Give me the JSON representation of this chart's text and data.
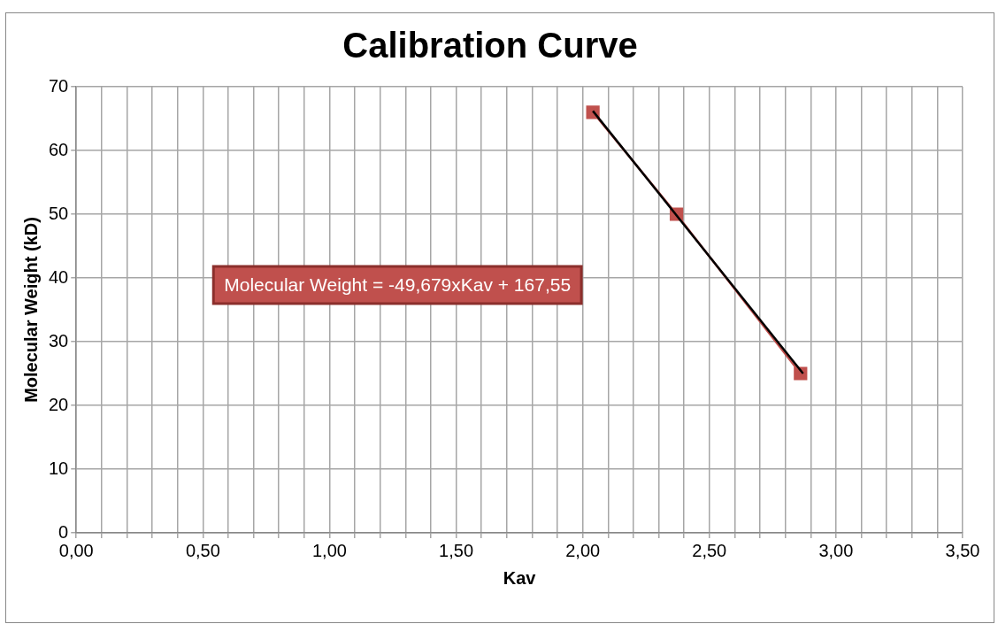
{
  "chart_data": {
    "type": "line",
    "title": "Calibration Curve",
    "xlabel": "Kav",
    "ylabel": "Molecular Weight (kD)",
    "series": [
      {
        "color": "#c0504d",
        "marker": "square",
        "x": [
          2.04,
          2.37,
          2.86
        ],
        "values": [
          66,
          50,
          25
        ]
      },
      {
        "color": "#000000",
        "marker": "none",
        "x": [
          2.04,
          2.87
        ],
        "values": [
          66.2,
          25.0
        ]
      }
    ],
    "xlim": [
      0,
      3.5
    ],
    "xticks": [
      {
        "value": 0,
        "label": "0,00"
      },
      {
        "value": 0.1,
        "label": null
      },
      {
        "value": 0.2,
        "label": null
      },
      {
        "value": 0.3,
        "label": null
      },
      {
        "value": 0.4,
        "label": null
      },
      {
        "value": 0.5,
        "label": "0,50"
      },
      {
        "value": 0.6,
        "label": null
      },
      {
        "value": 0.7,
        "label": null
      },
      {
        "value": 0.8,
        "label": null
      },
      {
        "value": 0.9,
        "label": null
      },
      {
        "value": 1,
        "label": "1,00"
      },
      {
        "value": 1.1,
        "label": null
      },
      {
        "value": 1.2,
        "label": null
      },
      {
        "value": 1.3,
        "label": null
      },
      {
        "value": 1.4,
        "label": null
      },
      {
        "value": 1.5,
        "label": "1,50"
      },
      {
        "value": 1.6,
        "label": null
      },
      {
        "value": 1.7,
        "label": null
      },
      {
        "value": 1.8,
        "label": null
      },
      {
        "value": 1.9,
        "label": null
      },
      {
        "value": 2,
        "label": "2,00"
      },
      {
        "value": 2.1,
        "label": null
      },
      {
        "value": 2.2,
        "label": null
      },
      {
        "value": 2.3,
        "label": null
      },
      {
        "value": 2.4,
        "label": null
      },
      {
        "value": 2.5,
        "label": "2,50"
      },
      {
        "value": 2.6,
        "label": null
      },
      {
        "value": 2.7,
        "label": null
      },
      {
        "value": 2.8,
        "label": null
      },
      {
        "value": 2.9,
        "label": null
      },
      {
        "value": 3,
        "label": "3,00"
      },
      {
        "value": 3.1,
        "label": null
      },
      {
        "value": 3.2,
        "label": null
      },
      {
        "value": 3.3,
        "label": null
      },
      {
        "value": 3.4,
        "label": null
      },
      {
        "value": 3.5,
        "label": "3,50"
      }
    ],
    "ylim": [
      0,
      70
    ],
    "yticks": [
      0,
      10,
      20,
      30,
      40,
      50,
      60,
      70
    ],
    "annotations": [
      "Molecular Weight = -49,679xKav + 167,55"
    ],
    "grid": true,
    "legend": false
  }
}
